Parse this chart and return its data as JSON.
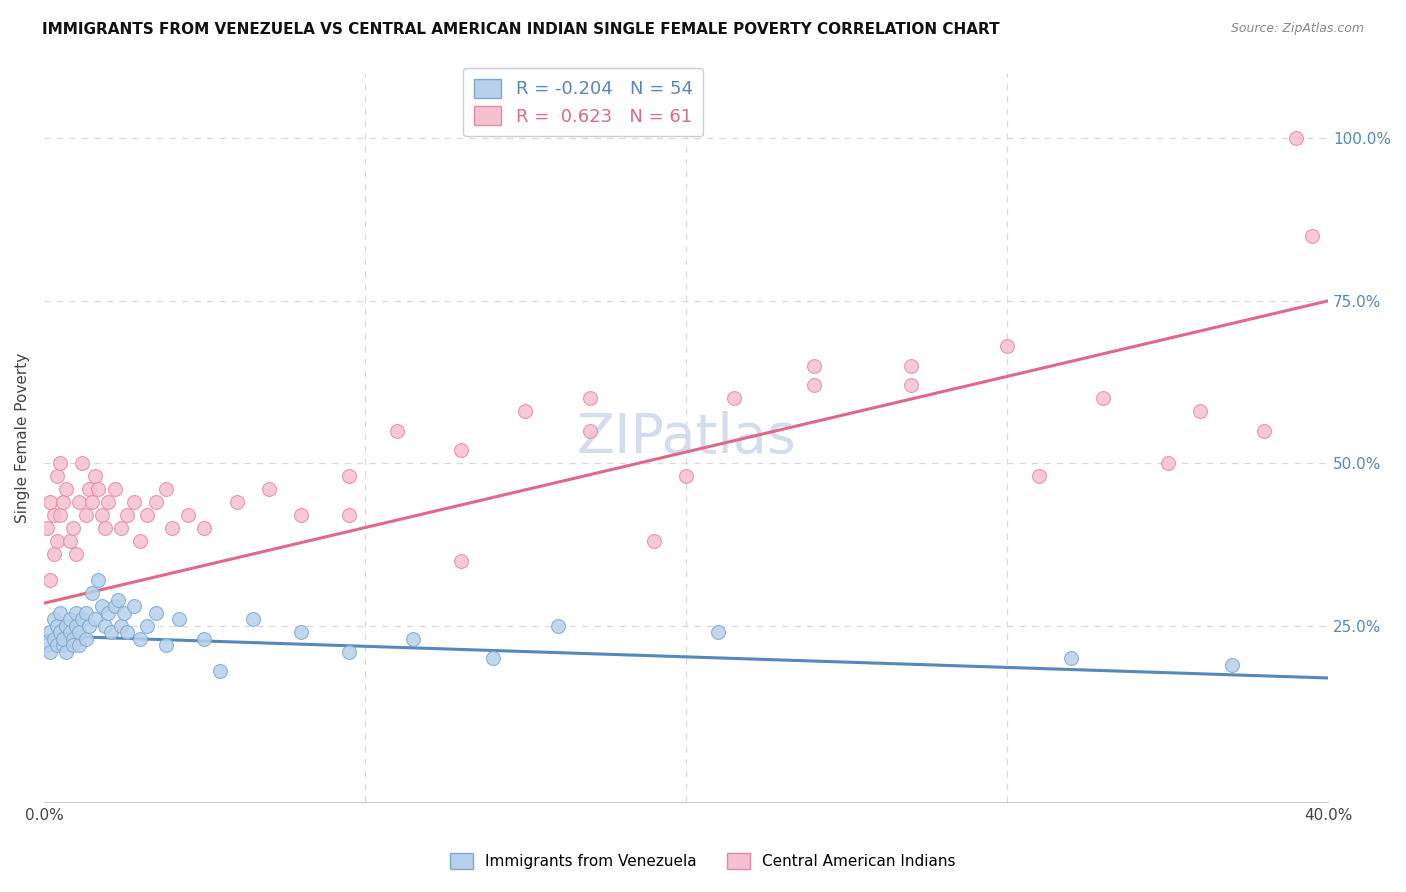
{
  "title": "IMMIGRANTS FROM VENEZUELA VS CENTRAL AMERICAN INDIAN SINGLE FEMALE POVERTY CORRELATION CHART",
  "source": "Source: ZipAtlas.com",
  "ylabel": "Single Female Poverty",
  "watermark": "ZIPatlas",
  "xlim": [
    0.0,
    0.4
  ],
  "ylim": [
    -0.02,
    1.1
  ],
  "yticks_right": [
    0.25,
    0.5,
    0.75,
    1.0
  ],
  "yticklabels_right": [
    "25.0%",
    "50.0%",
    "75.0%",
    "100.0%"
  ],
  "legend_blue_r": "-0.204",
  "legend_blue_n": "54",
  "legend_pink_r": "0.623",
  "legend_pink_n": "61",
  "legend_label_blue": "Immigrants from Venezuela",
  "legend_label_pink": "Central American Indians",
  "blue_fill": "#b8d0ea",
  "pink_fill": "#f5c0d0",
  "blue_edge": "#7aaad0",
  "pink_edge": "#e888a8",
  "blue_line": "#5588bb",
  "pink_line": "#e06888",
  "blue_scatter_x": [
    0.001,
    0.002,
    0.002,
    0.003,
    0.003,
    0.004,
    0.004,
    0.005,
    0.005,
    0.006,
    0.006,
    0.007,
    0.007,
    0.008,
    0.008,
    0.009,
    0.009,
    0.01,
    0.01,
    0.011,
    0.011,
    0.012,
    0.013,
    0.013,
    0.014,
    0.015,
    0.016,
    0.017,
    0.018,
    0.019,
    0.02,
    0.021,
    0.022,
    0.023,
    0.024,
    0.025,
    0.026,
    0.028,
    0.03,
    0.032,
    0.035,
    0.038,
    0.042,
    0.05,
    0.055,
    0.065,
    0.08,
    0.095,
    0.115,
    0.14,
    0.16,
    0.21,
    0.32,
    0.37
  ],
  "blue_scatter_y": [
    0.22,
    0.24,
    0.21,
    0.23,
    0.26,
    0.25,
    0.22,
    0.27,
    0.24,
    0.22,
    0.23,
    0.25,
    0.21,
    0.24,
    0.26,
    0.23,
    0.22,
    0.25,
    0.27,
    0.22,
    0.24,
    0.26,
    0.23,
    0.27,
    0.25,
    0.3,
    0.26,
    0.32,
    0.28,
    0.25,
    0.27,
    0.24,
    0.28,
    0.29,
    0.25,
    0.27,
    0.24,
    0.28,
    0.23,
    0.25,
    0.27,
    0.22,
    0.26,
    0.23,
    0.18,
    0.26,
    0.24,
    0.21,
    0.23,
    0.2,
    0.25,
    0.24,
    0.2,
    0.19
  ],
  "pink_scatter_x": [
    0.001,
    0.002,
    0.002,
    0.003,
    0.003,
    0.004,
    0.004,
    0.005,
    0.005,
    0.006,
    0.007,
    0.008,
    0.009,
    0.01,
    0.011,
    0.012,
    0.013,
    0.014,
    0.015,
    0.016,
    0.017,
    0.018,
    0.019,
    0.02,
    0.022,
    0.024,
    0.026,
    0.028,
    0.03,
    0.032,
    0.035,
    0.038,
    0.04,
    0.045,
    0.05,
    0.06,
    0.07,
    0.08,
    0.095,
    0.11,
    0.13,
    0.15,
    0.17,
    0.19,
    0.215,
    0.24,
    0.27,
    0.3,
    0.33,
    0.36,
    0.39,
    0.395,
    0.38,
    0.35,
    0.31,
    0.27,
    0.24,
    0.2,
    0.17,
    0.13,
    0.095
  ],
  "pink_scatter_y": [
    0.4,
    0.32,
    0.44,
    0.42,
    0.36,
    0.38,
    0.48,
    0.5,
    0.42,
    0.44,
    0.46,
    0.38,
    0.4,
    0.36,
    0.44,
    0.5,
    0.42,
    0.46,
    0.44,
    0.48,
    0.46,
    0.42,
    0.4,
    0.44,
    0.46,
    0.4,
    0.42,
    0.44,
    0.38,
    0.42,
    0.44,
    0.46,
    0.4,
    0.42,
    0.4,
    0.44,
    0.46,
    0.42,
    0.48,
    0.55,
    0.52,
    0.58,
    0.6,
    0.38,
    0.6,
    0.62,
    0.62,
    0.68,
    0.6,
    0.58,
    1.0,
    0.85,
    0.55,
    0.5,
    0.48,
    0.65,
    0.65,
    0.48,
    0.55,
    0.35,
    0.42
  ],
  "blue_trend_x": [
    0.0,
    0.4
  ],
  "blue_trend_y": [
    0.235,
    0.17
  ],
  "pink_trend_x": [
    0.0,
    0.4
  ],
  "pink_trend_y": [
    0.285,
    0.75
  ],
  "title_fontsize": 11,
  "source_fontsize": 9,
  "watermark_fontsize": 40,
  "watermark_color": "#ccd8e8",
  "background_color": "#ffffff",
  "grid_color": "#d8d8e8"
}
